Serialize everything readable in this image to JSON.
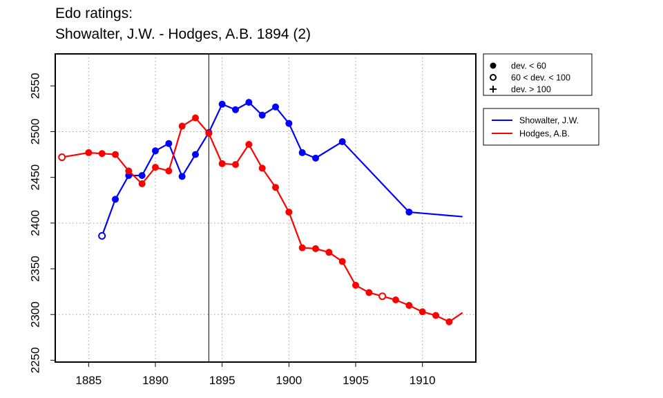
{
  "title_line1": "Edo ratings:",
  "title_line2": "Showalter, J.W. - Hodges, A.B. 1894 (2)",
  "chart_data": {
    "type": "line",
    "xlim": [
      1882.5,
      1914
    ],
    "ylim": [
      2248,
      2585
    ],
    "x_ticks": [
      1885,
      1890,
      1895,
      1900,
      1905,
      1910
    ],
    "y_ticks": [
      2250,
      2300,
      2350,
      2400,
      2450,
      2500,
      2550
    ],
    "grid_x": [
      1885,
      1890,
      1895,
      1900,
      1905,
      1910
    ],
    "grid_y": [
      2300,
      2400,
      2500
    ],
    "vline_x": 1894,
    "series": [
      {
        "name": "Showalter, J.W.",
        "color": "#0000ff",
        "points": [
          {
            "x": 1886,
            "y": 2386,
            "dev": "mid"
          },
          {
            "x": 1887,
            "y": 2426,
            "dev": "low"
          },
          {
            "x": 1888,
            "y": 2452,
            "dev": "low"
          },
          {
            "x": 1889,
            "y": 2452,
            "dev": "low"
          },
          {
            "x": 1890,
            "y": 2479,
            "dev": "low"
          },
          {
            "x": 1891,
            "y": 2487,
            "dev": "low"
          },
          {
            "x": 1892,
            "y": 2451,
            "dev": "low"
          },
          {
            "x": 1893,
            "y": 2475,
            "dev": "low"
          },
          {
            "x": 1894,
            "y": 2499,
            "dev": "low"
          },
          {
            "x": 1895,
            "y": 2530,
            "dev": "low"
          },
          {
            "x": 1896,
            "y": 2524,
            "dev": "low"
          },
          {
            "x": 1897,
            "y": 2532,
            "dev": "low"
          },
          {
            "x": 1898,
            "y": 2518,
            "dev": "low"
          },
          {
            "x": 1899,
            "y": 2527,
            "dev": "low"
          },
          {
            "x": 1900,
            "y": 2509,
            "dev": "low"
          },
          {
            "x": 1901,
            "y": 2477,
            "dev": "low"
          },
          {
            "x": 1902,
            "y": 2471,
            "dev": "low"
          },
          {
            "x": 1904,
            "y": 2489,
            "dev": "low"
          },
          {
            "x": 1909,
            "y": 2412,
            "dev": "low"
          },
          {
            "x": 1913,
            "y": 2407,
            "dev": "none"
          }
        ]
      },
      {
        "name": "Hodges, A.B.",
        "color": "#ff0000",
        "points": [
          {
            "x": 1883,
            "y": 2472,
            "dev": "mid"
          },
          {
            "x": 1885,
            "y": 2477,
            "dev": "low"
          },
          {
            "x": 1886,
            "y": 2476,
            "dev": "low"
          },
          {
            "x": 1887,
            "y": 2475,
            "dev": "low"
          },
          {
            "x": 1888,
            "y": 2457,
            "dev": "low"
          },
          {
            "x": 1889,
            "y": 2443,
            "dev": "low"
          },
          {
            "x": 1890,
            "y": 2461,
            "dev": "low"
          },
          {
            "x": 1891,
            "y": 2457,
            "dev": "low"
          },
          {
            "x": 1892,
            "y": 2506,
            "dev": "low"
          },
          {
            "x": 1893,
            "y": 2515,
            "dev": "low"
          },
          {
            "x": 1894,
            "y": 2498,
            "dev": "low"
          },
          {
            "x": 1895,
            "y": 2465,
            "dev": "low"
          },
          {
            "x": 1896,
            "y": 2464,
            "dev": "low"
          },
          {
            "x": 1897,
            "y": 2486,
            "dev": "low"
          },
          {
            "x": 1898,
            "y": 2460,
            "dev": "low"
          },
          {
            "x": 1899,
            "y": 2439,
            "dev": "low"
          },
          {
            "x": 1900,
            "y": 2412,
            "dev": "low"
          },
          {
            "x": 1901,
            "y": 2373,
            "dev": "low"
          },
          {
            "x": 1902,
            "y": 2372,
            "dev": "low"
          },
          {
            "x": 1903,
            "y": 2368,
            "dev": "low"
          },
          {
            "x": 1904,
            "y": 2358,
            "dev": "low"
          },
          {
            "x": 1905,
            "y": 2332,
            "dev": "low"
          },
          {
            "x": 1906,
            "y": 2324,
            "dev": "low"
          },
          {
            "x": 1907,
            "y": 2320,
            "dev": "mid"
          },
          {
            "x": 1908,
            "y": 2316,
            "dev": "low"
          },
          {
            "x": 1909,
            "y": 2310,
            "dev": "low"
          },
          {
            "x": 1910,
            "y": 2303,
            "dev": "low"
          },
          {
            "x": 1911,
            "y": 2299,
            "dev": "low"
          },
          {
            "x": 1912,
            "y": 2292,
            "dev": "low"
          },
          {
            "x": 1913,
            "y": 2302,
            "dev": "none"
          }
        ]
      }
    ],
    "marker_legend": [
      {
        "symbol": "filled",
        "label": "dev. < 60"
      },
      {
        "symbol": "open",
        "label": "60 < dev. < 100"
      },
      {
        "symbol": "plus",
        "label": "dev. > 100"
      }
    ],
    "legend_placement": "right"
  }
}
